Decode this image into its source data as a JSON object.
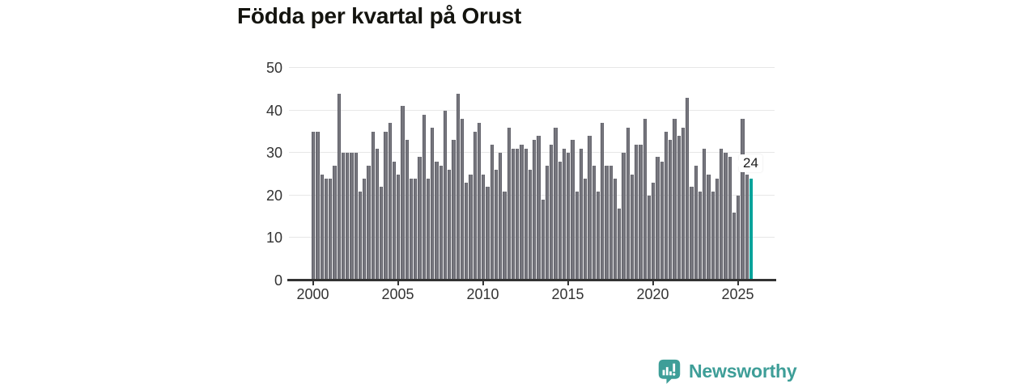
{
  "title": "Födda per kvartal på Orust",
  "callout": {
    "label": "24"
  },
  "brand": {
    "name": "Newsworthy",
    "color": "#3e9e98"
  },
  "colors": {
    "bar": "#78787f",
    "bar_edge": "#5d5d66",
    "highlight": "#00a39b",
    "gridline": "#e7e7e7",
    "axis": "#333333",
    "title_text": "#14140f"
  },
  "chart_data": {
    "type": "bar",
    "title": "Födda per kvartal på Orust",
    "xlabel": "",
    "ylabel": "",
    "x_start": "2000-Q1",
    "x_freq": "quarterly",
    "x_tick_labels": [
      "2000",
      "2005",
      "2010",
      "2015",
      "2020",
      "2025"
    ],
    "y_ticks": [
      0,
      10,
      20,
      30,
      40,
      50
    ],
    "ylim": [
      0,
      50
    ],
    "grid": true,
    "legend": false,
    "highlight_last_bar": true,
    "last_bar_label": "24",
    "values": [
      35,
      35,
      25,
      24,
      24,
      27,
      44,
      30,
      30,
      30,
      30,
      21,
      24,
      27,
      35,
      31,
      22,
      35,
      37,
      28,
      25,
      41,
      33,
      24,
      24,
      29,
      39,
      24,
      36,
      28,
      27,
      40,
      26,
      33,
      44,
      38,
      23,
      25,
      35,
      37,
      25,
      22,
      32,
      26,
      30,
      21,
      36,
      31,
      31,
      32,
      31,
      26,
      33,
      34,
      19,
      27,
      32,
      36,
      28,
      31,
      30,
      33,
      21,
      31,
      24,
      34,
      27,
      21,
      37,
      27,
      27,
      24,
      17,
      30,
      36,
      25,
      32,
      32,
      38,
      20,
      23,
      29,
      28,
      35,
      33,
      38,
      34,
      36,
      43,
      22,
      27,
      21,
      31,
      25,
      21,
      24,
      31,
      30,
      29,
      16,
      20,
      38,
      25,
      24
    ]
  }
}
